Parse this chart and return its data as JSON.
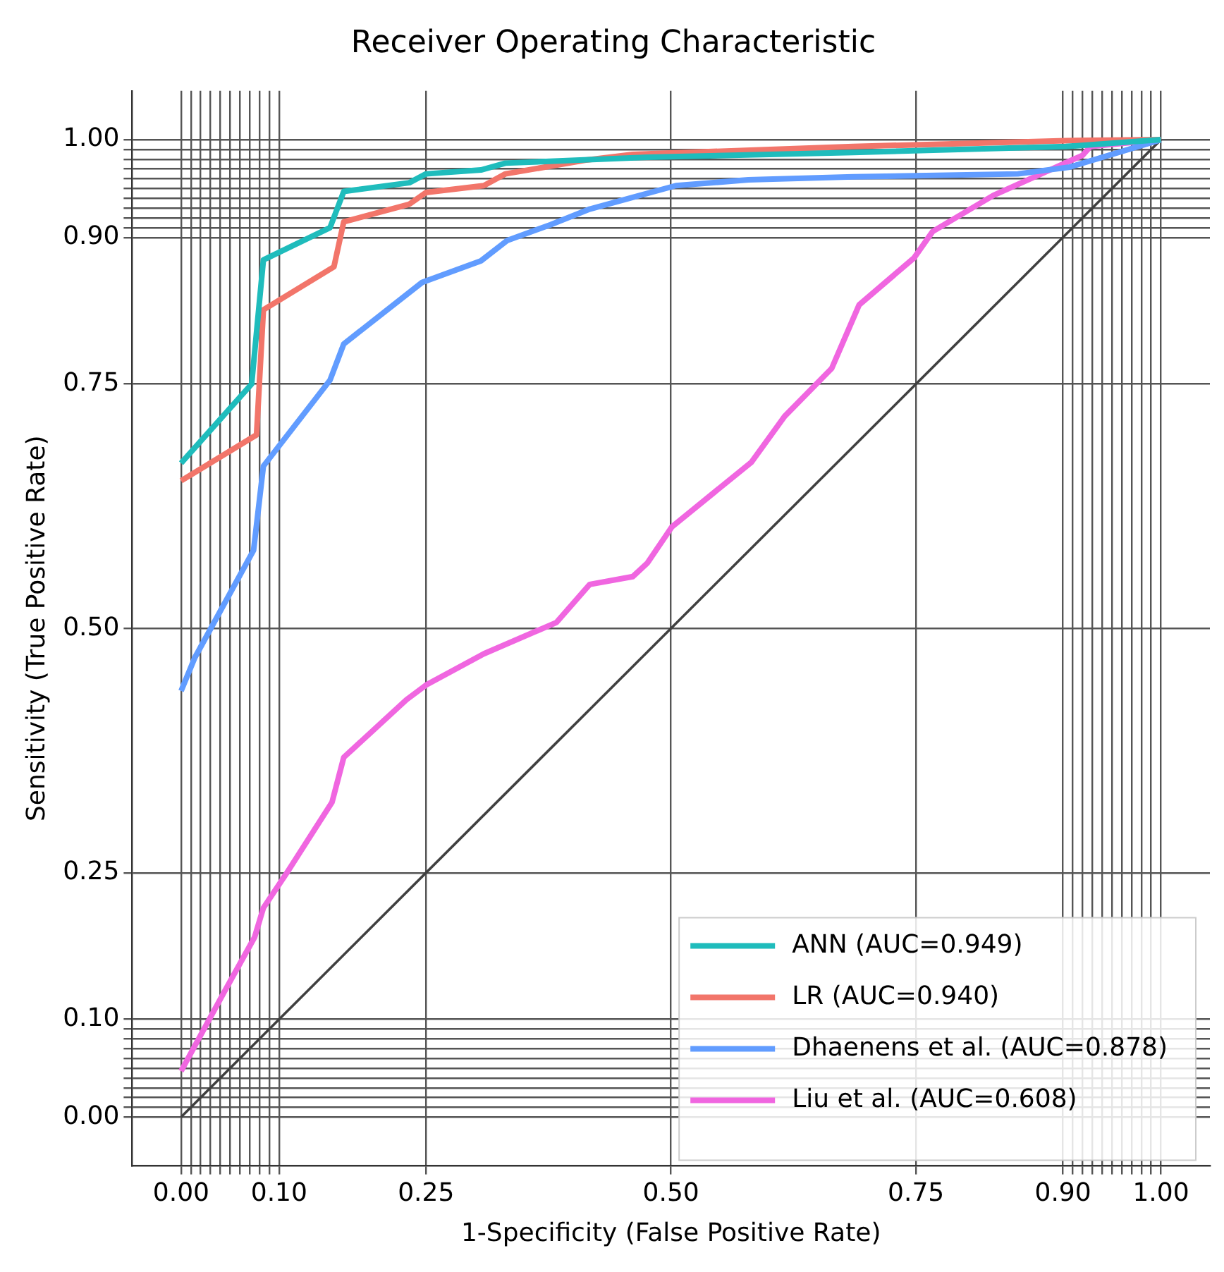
{
  "chart_data": {
    "type": "line",
    "title": "Receiver Operating Characteristic",
    "xlabel": "1-Specificity (False Positive Rate)",
    "ylabel": "Sensitivity (True Positive Rate)",
    "xlim": [
      -0.05,
      1.05
    ],
    "ylim": [
      -0.05,
      1.05
    ],
    "xticks": [
      {
        "value": 0,
        "label": "0.00"
      },
      {
        "value": 0.01,
        "label": null
      },
      {
        "value": 0.02,
        "label": null
      },
      {
        "value": 0.03,
        "label": null
      },
      {
        "value": 0.04,
        "label": null
      },
      {
        "value": 0.05,
        "label": null
      },
      {
        "value": 0.06,
        "label": null
      },
      {
        "value": 0.07,
        "label": null
      },
      {
        "value": 0.08,
        "label": null
      },
      {
        "value": 0.09,
        "label": null
      },
      {
        "value": 0.1,
        "label": "0.10"
      },
      0.25,
      {
        "value": 0.5,
        "label": "0.50"
      },
      0.75,
      {
        "value": 0.9,
        "label": "0.90"
      },
      {
        "value": 0.91,
        "label": null
      },
      {
        "value": 0.92,
        "label": null
      },
      {
        "value": 0.93,
        "label": null
      },
      {
        "value": 0.94,
        "label": null
      },
      {
        "value": 0.95,
        "label": null
      },
      {
        "value": 0.96,
        "label": null
      },
      {
        "value": 0.97,
        "label": null
      },
      {
        "value": 0.98,
        "label": null
      },
      {
        "value": 0.99,
        "label": null
      },
      {
        "value": 1,
        "label": "1.00"
      }
    ],
    "yticks": [
      {
        "value": 0,
        "label": "0.00"
      },
      {
        "value": 0.01,
        "label": null
      },
      {
        "value": 0.02,
        "label": null
      },
      {
        "value": 0.03,
        "label": null
      },
      {
        "value": 0.04,
        "label": null
      },
      {
        "value": 0.05,
        "label": null
      },
      {
        "value": 0.06,
        "label": null
      },
      {
        "value": 0.07,
        "label": null
      },
      {
        "value": 0.08,
        "label": null
      },
      {
        "value": 0.09,
        "label": null
      },
      {
        "value": 0.1,
        "label": "0.10"
      },
      0.25,
      {
        "value": 0.5,
        "label": "0.50"
      },
      0.75,
      {
        "value": 0.9,
        "label": "0.90"
      },
      {
        "value": 0.91,
        "label": null
      },
      {
        "value": 0.92,
        "label": null
      },
      {
        "value": 0.93,
        "label": null
      },
      {
        "value": 0.94,
        "label": null
      },
      {
        "value": 0.95,
        "label": null
      },
      {
        "value": 0.96,
        "label": null
      },
      {
        "value": 0.97,
        "label": null
      },
      {
        "value": 0.98,
        "label": null
      },
      {
        "value": 0.99,
        "label": null
      },
      {
        "value": 1,
        "label": "1.00"
      }
    ],
    "grid": true,
    "legend": "bottom right",
    "marker": "none",
    "line_style": "solid",
    "series": [
      {
        "name": "ANN (AUC=0.949)",
        "color": "#1fbcbc",
        "x": [
          0,
          0.072,
          0.084,
          0.152,
          0.166,
          0.233,
          0.25,
          0.306,
          0.331,
          0.476,
          0.686,
          0.903,
          1
        ],
        "values": [
          0.669,
          0.75,
          0.877,
          0.91,
          0.947,
          0.956,
          0.965,
          0.969,
          0.976,
          0.982,
          0.987,
          0.993,
          1
        ]
      },
      {
        "name": "LR (AUC=0.940)",
        "color": "#f2756a",
        "x": [
          0,
          0.077,
          0.084,
          0.156,
          0.166,
          0.233,
          0.25,
          0.309,
          0.331,
          0.412,
          0.461,
          0.686,
          0.903,
          1
        ],
        "values": [
          0.651,
          0.698,
          0.826,
          0.87,
          0.916,
          0.934,
          0.946,
          0.953,
          0.965,
          0.979,
          0.985,
          0.993,
          0.999,
          1
        ]
      },
      {
        "name": "Dhaenens et al. (AUC=0.878)",
        "color": "#619cff",
        "x": [
          0,
          0.014,
          0.074,
          0.084,
          0.152,
          0.166,
          0.246,
          0.306,
          0.333,
          0.377,
          0.417,
          0.461,
          0.505,
          0.579,
          0.686,
          0.854,
          0.907,
          1
        ],
        "values": [
          0.436,
          0.47,
          0.58,
          0.666,
          0.754,
          0.791,
          0.854,
          0.876,
          0.897,
          0.913,
          0.929,
          0.941,
          0.953,
          0.959,
          0.962,
          0.965,
          0.972,
          1
        ]
      },
      {
        "name": "Liu et al. (AUC=0.608)",
        "color": "#f066e0",
        "x": [
          0,
          0.044,
          0.075,
          0.084,
          0.108,
          0.154,
          0.166,
          0.23,
          0.25,
          0.309,
          0.383,
          0.417,
          0.461,
          0.476,
          0.501,
          0.582,
          0.616,
          0.664,
          0.692,
          0.748,
          0.767,
          0.829,
          0.92,
          0.928,
          1
        ],
        "values": [
          0.047,
          0.128,
          0.184,
          0.214,
          0.25,
          0.322,
          0.368,
          0.427,
          0.442,
          0.474,
          0.506,
          0.545,
          0.553,
          0.567,
          0.604,
          0.67,
          0.717,
          0.766,
          0.831,
          0.879,
          0.906,
          0.943,
          0.984,
          0.993,
          1
        ]
      },
      {
        "color": "#404040",
        "x": [
          0,
          1
        ],
        "values": [
          0,
          1
        ]
      }
    ]
  }
}
